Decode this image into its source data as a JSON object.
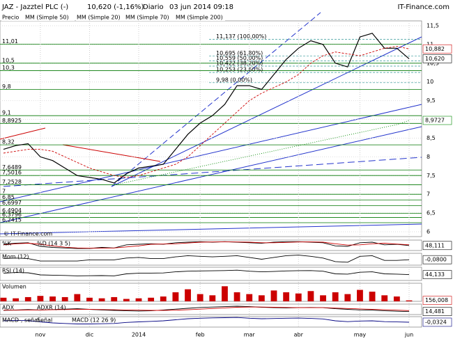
{
  "header": {
    "symbol": "JAZ - Jazztel PLC (-)",
    "price": "10,620 (-1,16%)",
    "period": "Diario",
    "date": "03 jun 2014 09:18",
    "site": "IT-Finance.com"
  },
  "watermark": "© IT-Finance.com",
  "chart_data": [
    {
      "type": "line",
      "categories": [
        null,
        null,
        null,
        "nov",
        null,
        null,
        null,
        "dic",
        null,
        null,
        null,
        "2014",
        null,
        null,
        null,
        null,
        "feb",
        null,
        null,
        null,
        "mar",
        null,
        null,
        null,
        "abr",
        null,
        null,
        null,
        null,
        "may",
        null,
        null,
        null,
        "jun"
      ],
      "ylim": [
        5.87,
        11.63
      ],
      "yticks": [
        6,
        {
          "value": 6.5,
          "label": "6,5"
        },
        7,
        {
          "value": 7.5,
          "label": "7,5"
        },
        8,
        {
          "value": 8.5,
          "label": "8,5"
        },
        9,
        {
          "value": 9.5,
          "label": "9,5"
        },
        10,
        {
          "value": 10.5,
          "label": "10,5"
        },
        11,
        {
          "value": 11.5,
          "label": "11,5"
        }
      ],
      "levels": [
        {
          "value": 11.01,
          "label": "11,01"
        },
        {
          "value": 10.5,
          "label": "10,5"
        },
        {
          "value": 10.3,
          "label": "10,3"
        },
        {
          "value": 9.8,
          "label": "9,8"
        },
        {
          "value": 9.1,
          "label": "9,1"
        },
        {
          "value": 8.8925,
          "label": "8,8925"
        },
        {
          "value": 8.32,
          "label": "8,32"
        },
        {
          "value": 7.6489,
          "label": "7,6489"
        },
        {
          "value": 7.5016,
          "label": "7,5016"
        },
        {
          "value": 7.2528,
          "label": "7,2528"
        },
        {
          "value": 7,
          "label": "7"
        },
        {
          "value": 6.85,
          "label": "6,85"
        },
        {
          "value": 6.6997,
          "label": "6,6997"
        },
        {
          "value": 6.4904,
          "label": "6,4904"
        },
        {
          "value": 6.3796,
          "label": "6,3796"
        },
        {
          "value": 6.2415,
          "label": "6,2415"
        }
      ],
      "fibonacci": [
        {
          "value": 11.137,
          "label": "11,137 (100,00%)"
        },
        {
          "value": 10.695,
          "label": "10,695 (61,80%)"
        },
        {
          "value": 10.559,
          "label": "10,559 (50,00%)"
        },
        {
          "value": 10.422,
          "label": "10,422 (38,20%)"
        },
        {
          "value": 10.253,
          "label": "10,253 (23,60%)"
        },
        {
          "value": 9.98,
          "label": "9,98 (0,00%)"
        }
      ],
      "series": [
        {
          "name": "Precio",
          "color": "#000000",
          "values": [
            8.2,
            8.3,
            8.35,
            8.0,
            7.9,
            7.7,
            7.5,
            7.45,
            7.4,
            7.3,
            7.55,
            7.7,
            7.75,
            7.8,
            8.2,
            8.6,
            8.9,
            9.1,
            9.4,
            9.9,
            9.9,
            9.8,
            10.2,
            10.6,
            10.9,
            11.1,
            11.0,
            10.5,
            10.4,
            11.2,
            11.3,
            10.9,
            10.9,
            10.62
          ],
          "value_labels": [
            null,
            null,
            null,
            null,
            null,
            null,
            null,
            null,
            null,
            null,
            null,
            null,
            null,
            null,
            null,
            null,
            null,
            null,
            null,
            null,
            null,
            null,
            null,
            null,
            null,
            null,
            null,
            null,
            null,
            null,
            null,
            null,
            null,
            "10,620"
          ]
        },
        {
          "name": "MM (Simple 50)",
          "color": "#b0b0ff",
          "values": [
            null,
            null,
            null,
            null,
            null,
            null,
            null,
            null,
            null,
            null,
            null,
            null,
            null,
            null,
            null,
            null,
            null,
            null,
            null,
            null,
            null,
            null,
            null,
            null,
            null,
            null,
            null,
            null,
            null,
            null,
            null,
            null,
            null,
            null
          ]
        },
        {
          "name": "MM (Simple 20)",
          "color": "#cc0000",
          "values": [
            8.1,
            8.15,
            8.2,
            8.2,
            8.15,
            8.0,
            7.85,
            7.7,
            7.6,
            7.5,
            7.45,
            7.5,
            7.6,
            7.7,
            7.8,
            8.0,
            8.3,
            8.6,
            8.9,
            9.2,
            9.5,
            9.7,
            9.85,
            10.0,
            10.2,
            10.5,
            10.7,
            10.8,
            10.75,
            10.7,
            10.8,
            10.9,
            10.95,
            10.882
          ],
          "value_labels": [
            null,
            null,
            null,
            null,
            null,
            null,
            null,
            null,
            null,
            null,
            null,
            null,
            null,
            null,
            null,
            null,
            null,
            null,
            null,
            null,
            null,
            null,
            null,
            null,
            null,
            null,
            null,
            null,
            null,
            null,
            null,
            null,
            null,
            "10,882"
          ]
        },
        {
          "name": "MM (Simple 70)",
          "color": "#0000cc",
          "values": [
            null,
            null,
            null,
            null,
            null,
            null,
            null,
            null,
            null,
            null,
            null,
            null,
            null,
            null,
            null,
            null,
            null,
            null,
            null,
            null,
            null,
            null,
            null,
            null,
            null,
            null,
            null,
            null,
            null,
            null,
            null,
            null,
            null,
            null
          ]
        },
        {
          "name": "MM (Simple 200)",
          "color": "#008800",
          "values": [
            null,
            null,
            null,
            null,
            null,
            null,
            null,
            null,
            null,
            7.25,
            7.32,
            7.39,
            7.46,
            7.53,
            7.6,
            7.67,
            7.74,
            7.81,
            7.88,
            7.95,
            8.02,
            8.09,
            8.16,
            8.23,
            8.3,
            8.37,
            8.44,
            8.51,
            8.58,
            8.65,
            8.72,
            8.79,
            8.86,
            8.9727
          ],
          "value_labels": [
            null,
            null,
            null,
            null,
            null,
            null,
            null,
            null,
            null,
            null,
            null,
            null,
            null,
            null,
            null,
            null,
            null,
            null,
            null,
            null,
            null,
            null,
            null,
            null,
            null,
            null,
            null,
            null,
            null,
            null,
            null,
            null,
            null,
            "8,9727"
          ]
        }
      ]
    },
    {
      "type": "line",
      "legend": [
        "%K",
        "%D (14 3 5)"
      ],
      "ylim": [
        0,
        100
      ],
      "series": [
        {
          "color": "#000000",
          "values": [
            60,
            70,
            75,
            40,
            30,
            25,
            20,
            20,
            30,
            25,
            55,
            60,
            65,
            60,
            75,
            80,
            85,
            80,
            85,
            80,
            75,
            70,
            80,
            85,
            85,
            80,
            75,
            45,
            40,
            75,
            80,
            55,
            60,
            48.111
          ],
          "value_labels": [
            null,
            null,
            null,
            null,
            null,
            null,
            null,
            null,
            null,
            null,
            null,
            null,
            null,
            null,
            null,
            null,
            null,
            null,
            null,
            null,
            null,
            null,
            null,
            null,
            null,
            null,
            null,
            null,
            null,
            null,
            null,
            null,
            null,
            "48,111"
          ]
        },
        {
          "color": "#cc0000",
          "values": [
            55,
            65,
            70,
            60,
            45,
            32,
            25,
            22,
            23,
            25,
            35,
            45,
            60,
            62,
            65,
            72,
            80,
            82,
            83,
            82,
            80,
            75,
            75,
            78,
            82,
            83,
            80,
            65,
            52,
            55,
            65,
            70,
            62,
            55
          ]
        }
      ]
    },
    {
      "type": "line",
      "legend": [
        "Mom (12)"
      ],
      "ylim": [
        -1,
        1
      ],
      "series": [
        {
          "color": "#000000",
          "values": [
            0.1,
            0.2,
            0.1,
            -0.3,
            -0.3,
            -0.3,
            -0.3,
            -0.1,
            -0.1,
            -0.1,
            0.2,
            0.3,
            0.1,
            0.1,
            0.4,
            0.6,
            0.5,
            0.4,
            0.5,
            0.6,
            0.3,
            0,
            0.3,
            0.6,
            0.7,
            0.5,
            0.2,
            -0.4,
            -0.5,
            0.5,
            0.6,
            -0.2,
            -0.2,
            -0.08
          ],
          "value_labels": [
            null,
            null,
            null,
            null,
            null,
            null,
            null,
            null,
            null,
            null,
            null,
            null,
            null,
            null,
            null,
            null,
            null,
            null,
            null,
            null,
            null,
            null,
            null,
            null,
            null,
            null,
            null,
            null,
            null,
            null,
            null,
            null,
            null,
            "-0,0800"
          ]
        }
      ]
    },
    {
      "type": "line",
      "legend": [
        "RSI (14)"
      ],
      "ylim": [
        0,
        100
      ],
      "series": [
        {
          "color": "#000000",
          "values": [
            55,
            60,
            58,
            42,
            40,
            38,
            35,
            36,
            37,
            35,
            50,
            55,
            56,
            57,
            65,
            70,
            72,
            73,
            75,
            78,
            70,
            65,
            68,
            72,
            74,
            75,
            70,
            50,
            48,
            62,
            65,
            50,
            48,
            44.133
          ],
          "value_labels": [
            null,
            null,
            null,
            null,
            null,
            null,
            null,
            null,
            null,
            null,
            null,
            null,
            null,
            null,
            null,
            null,
            null,
            null,
            null,
            null,
            null,
            null,
            null,
            null,
            null,
            null,
            null,
            null,
            null,
            null,
            null,
            null,
            null,
            "44,133"
          ]
        }
      ]
    },
    {
      "type": "bar",
      "legend": [
        "Volumen"
      ],
      "ylim": [
        0,
        3000
      ],
      "series": [
        {
          "color": "#cc0000",
          "values": [
            600,
            500,
            700,
            900,
            800,
            700,
            1200,
            600,
            500,
            700,
            400,
            500,
            600,
            800,
            1500,
            2000,
            1200,
            1000,
            2500,
            1500,
            1200,
            1000,
            1800,
            1500,
            1300,
            1700,
            1000,
            1500,
            1200,
            1900,
            1600,
            1000,
            800,
            156.008
          ],
          "value_labels": [
            null,
            null,
            null,
            null,
            null,
            null,
            null,
            null,
            null,
            null,
            null,
            null,
            null,
            null,
            null,
            null,
            null,
            null,
            null,
            null,
            null,
            null,
            null,
            null,
            null,
            null,
            null,
            null,
            null,
            null,
            null,
            null,
            null,
            "156,008"
          ]
        }
      ]
    },
    {
      "type": "line",
      "legend": [
        "ADX",
        "ADXR (14)"
      ],
      "ylim": [
        0,
        50
      ],
      "series": [
        {
          "color": "#000000",
          "values": [
            20,
            22,
            24,
            22,
            24,
            26,
            28,
            25,
            22,
            20,
            18,
            17,
            18,
            22,
            26,
            30,
            34,
            36,
            38,
            40,
            38,
            35,
            33,
            32,
            33,
            34,
            33,
            28,
            25,
            22,
            21,
            18,
            16,
            14.481
          ],
          "value_labels": [
            null,
            null,
            null,
            null,
            null,
            null,
            null,
            null,
            null,
            null,
            null,
            null,
            null,
            null,
            null,
            null,
            null,
            null,
            null,
            null,
            null,
            null,
            null,
            null,
            null,
            null,
            null,
            null,
            null,
            null,
            null,
            null,
            null,
            "14,481"
          ]
        },
        {
          "color": "#cc0000",
          "values": [
            21,
            21,
            22,
            22,
            23,
            24,
            25,
            25,
            24,
            23,
            22,
            21,
            20,
            20,
            21,
            23,
            26,
            29,
            32,
            35,
            36,
            36,
            35,
            34,
            33,
            33,
            33,
            31,
            29,
            27,
            25,
            23,
            21,
            19
          ]
        }
      ]
    },
    {
      "type": "line",
      "legend": [
        "MACD-, señal",
        "Señal",
        "MACD (12 26 9)"
      ],
      "ylim": [
        -0.5,
        0.5
      ],
      "series": [
        {
          "color": "#000080",
          "values": [
            0.1,
            0.15,
            0.12,
            0,
            -0.1,
            -0.15,
            -0.2,
            -0.2,
            -0.18,
            -0.15,
            -0.05,
            0,
            0.05,
            0.1,
            0.2,
            0.3,
            0.35,
            0.38,
            0.4,
            0.42,
            0.35,
            0.3,
            0.32,
            0.35,
            0.36,
            0.33,
            0.28,
            0.1,
            0.02,
            0.08,
            0.1,
            0.02,
            -0.01,
            -0.0324
          ],
          "value_labels": [
            null,
            null,
            null,
            null,
            null,
            null,
            null,
            null,
            null,
            null,
            null,
            null,
            null,
            null,
            null,
            null,
            null,
            null,
            null,
            null,
            null,
            null,
            null,
            null,
            null,
            null,
            null,
            null,
            null,
            null,
            null,
            null,
            null,
            "-0,0324"
          ]
        }
      ]
    }
  ]
}
